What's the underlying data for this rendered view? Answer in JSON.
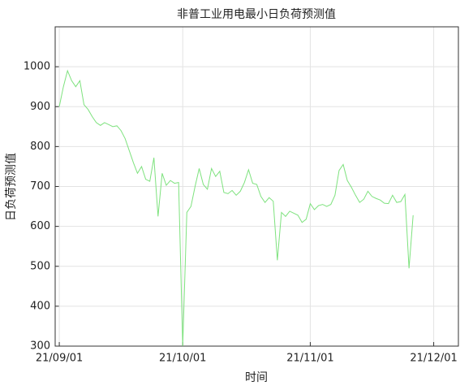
{
  "chart_data": {
    "type": "line",
    "title": "非普工业用电最小日负荷预测值",
    "xlabel": "时间",
    "ylabel": "日负荷预测值",
    "x": [
      "2021-09-01",
      "2021-09-02",
      "2021-09-03",
      "2021-09-04",
      "2021-09-05",
      "2021-09-06",
      "2021-09-07",
      "2021-09-08",
      "2021-09-09",
      "2021-09-10",
      "2021-09-11",
      "2021-09-12",
      "2021-09-13",
      "2021-09-14",
      "2021-09-15",
      "2021-09-16",
      "2021-09-17",
      "2021-09-18",
      "2021-09-19",
      "2021-09-20",
      "2021-09-21",
      "2021-09-22",
      "2021-09-23",
      "2021-09-24",
      "2021-09-25",
      "2021-09-26",
      "2021-09-27",
      "2021-09-28",
      "2021-09-29",
      "2021-09-30",
      "2021-10-01",
      "2021-10-02",
      "2021-10-03",
      "2021-10-04",
      "2021-10-05",
      "2021-10-06",
      "2021-10-07",
      "2021-10-08",
      "2021-10-09",
      "2021-10-10",
      "2021-10-11",
      "2021-10-12",
      "2021-10-13",
      "2021-10-14",
      "2021-10-15",
      "2021-10-16",
      "2021-10-17",
      "2021-10-18",
      "2021-10-19",
      "2021-10-20",
      "2021-10-21",
      "2021-10-22",
      "2021-10-23",
      "2021-10-24",
      "2021-10-25",
      "2021-10-26",
      "2021-10-27",
      "2021-10-28",
      "2021-10-29",
      "2021-10-30",
      "2021-10-31",
      "2021-11-01",
      "2021-11-02",
      "2021-11-03",
      "2021-11-04",
      "2021-11-05",
      "2021-11-06",
      "2021-11-07",
      "2021-11-08",
      "2021-11-09",
      "2021-11-10",
      "2021-11-11",
      "2021-11-12",
      "2021-11-13",
      "2021-11-14",
      "2021-11-15",
      "2021-11-16",
      "2021-11-17",
      "2021-11-18",
      "2021-11-19",
      "2021-11-20",
      "2021-11-21",
      "2021-11-22",
      "2021-11-23",
      "2021-11-24",
      "2021-11-25",
      "2021-11-26"
    ],
    "series": [
      {
        "name": "日负荷预测值",
        "color": "#7ee27e",
        "values": [
          900,
          950,
          990,
          965,
          950,
          965,
          905,
          893,
          875,
          860,
          853,
          860,
          855,
          850,
          852,
          840,
          820,
          790,
          760,
          733,
          750,
          718,
          713,
          772,
          625,
          733,
          703,
          715,
          708,
          710,
          300,
          635,
          650,
          700,
          745,
          705,
          693,
          745,
          725,
          738,
          685,
          682,
          690,
          678,
          688,
          710,
          742,
          708,
          705,
          675,
          660,
          672,
          663,
          515,
          635,
          625,
          638,
          633,
          628,
          610,
          618,
          657,
          642,
          652,
          655,
          650,
          655,
          678,
          740,
          755,
          715,
          698,
          678,
          660,
          668,
          688,
          675,
          670,
          666,
          658,
          657,
          678,
          660,
          662,
          680,
          495,
          628
        ]
      }
    ],
    "xlim": [
      "2021-08-31",
      "2021-12-07"
    ],
    "xticks": [
      {
        "value": "2021-09-01",
        "label": "21/09/01"
      },
      {
        "value": "2021-10-01",
        "label": "21/10/01"
      },
      {
        "value": "2021-11-01",
        "label": "21/11/01"
      },
      {
        "value": "2021-12-01",
        "label": "21/12/01"
      }
    ],
    "ylim": [
      300,
      1100
    ],
    "yticks": [
      300,
      400,
      500,
      600,
      700,
      800,
      900,
      1000
    ],
    "grid": true
  }
}
